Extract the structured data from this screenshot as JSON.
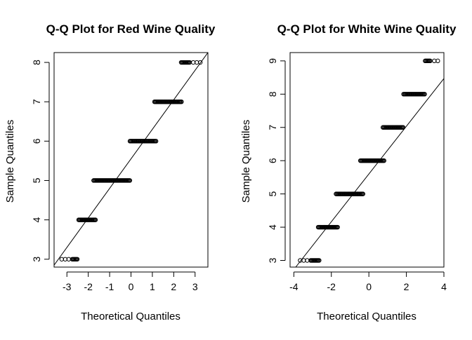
{
  "chart_data": [
    {
      "type": "scatter",
      "title": "Q-Q Plot for Red Wine Quality",
      "xlabel": "Theoretical Quantiles",
      "ylabel": "Sample Quantiles",
      "xlim": [
        -3.6,
        3.6
      ],
      "ylim": [
        2.8,
        8.25
      ],
      "xticks": [
        -3,
        -2,
        -1,
        0,
        1,
        2,
        3
      ],
      "yticks": [
        3,
        4,
        5,
        6,
        7,
        8
      ],
      "steps": [
        {
          "y": 3,
          "x_from": -3.4,
          "x_to": -2.5,
          "dense_from": -2.75,
          "dense_to": -2.5
        },
        {
          "y": 4,
          "x_from": -2.45,
          "x_to": -1.65
        },
        {
          "y": 5,
          "x_from": -1.75,
          "x_to": -0.05
        },
        {
          "y": 6,
          "x_from": -0.05,
          "x_to": 1.2
        },
        {
          "y": 7,
          "x_from": 1.1,
          "x_to": 2.4
        },
        {
          "y": 8,
          "x_from": 2.35,
          "x_to": 3.4,
          "dense_from": 2.35,
          "dense_to": 2.75
        }
      ],
      "reference_line": {
        "x1": -3.6,
        "y1": 2.85,
        "x2": 3.6,
        "y2": 8.25
      },
      "grid": false,
      "marker": "open-circle"
    },
    {
      "type": "scatter",
      "title": "Q-Q Plot for White Wine Quality",
      "xlabel": "Theoretical Quantiles",
      "ylabel": "Sample Quantiles",
      "xlim": [
        -4.2,
        4.0
      ],
      "ylim": [
        2.8,
        9.25
      ],
      "xticks": [
        -4,
        -2,
        0,
        2,
        4
      ],
      "yticks": [
        3,
        4,
        5,
        6,
        7,
        8,
        9
      ],
      "steps": [
        {
          "y": 3,
          "x_from": -3.7,
          "x_to": -2.65,
          "dense_from": -3.1,
          "dense_to": -2.65
        },
        {
          "y": 4,
          "x_from": -2.7,
          "x_to": -1.65
        },
        {
          "y": 5,
          "x_from": -1.75,
          "x_to": -0.3
        },
        {
          "y": 6,
          "x_from": -0.45,
          "x_to": 0.85
        },
        {
          "y": 7,
          "x_from": 0.75,
          "x_to": 1.85
        },
        {
          "y": 8,
          "x_from": 1.85,
          "x_to": 3.0
        },
        {
          "y": 9,
          "x_from": 3.0,
          "x_to": 3.75,
          "dense_from": 3.0,
          "dense_to": 3.3
        }
      ],
      "reference_line": {
        "x1": -3.9,
        "y1": 2.8,
        "x2": 4.0,
        "y2": 8.47
      },
      "grid": false,
      "marker": "open-circle"
    }
  ]
}
